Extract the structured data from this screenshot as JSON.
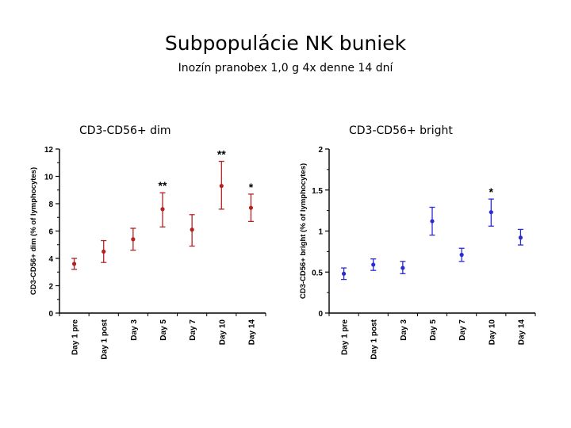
{
  "title": "Subpopulácie NK buniek",
  "subtitle": "Inozín pranobex 1,0 g 4x denne  14 dní",
  "chart_data": [
    {
      "type": "scatter",
      "panel_label": "CD3-CD56+ dim",
      "ylabel": "CD3-CD56+ dim (% of lymphocytes)",
      "categories": [
        "Day 1 pre",
        "Day 1 post",
        "Day 3",
        "Day 5",
        "Day 7",
        "Day 10",
        "Day 14"
      ],
      "values": [
        3.6,
        4.5,
        5.4,
        7.6,
        6.1,
        9.3,
        7.7
      ],
      "err_low": [
        3.2,
        3.7,
        4.6,
        6.3,
        4.9,
        7.6,
        6.7
      ],
      "err_high": [
        4.0,
        5.3,
        6.2,
        8.8,
        7.2,
        11.1,
        8.7
      ],
      "annotations": [
        "",
        "",
        "",
        "**",
        "",
        "**",
        "*"
      ],
      "ylim": [
        0,
        12
      ],
      "yticks": [
        0,
        2,
        4,
        6,
        8,
        10,
        12
      ],
      "ytick_labels": [
        "0",
        "2",
        "4",
        "6",
        "8",
        "10",
        "12"
      ],
      "color": "#b22222"
    },
    {
      "type": "scatter",
      "panel_label": "CD3-CD56+ bright",
      "ylabel": "CD3-CD56+ bright (% of lymphocytes)",
      "categories": [
        "Day 1 pre",
        "Day 1 post",
        "Day 3",
        "Day 5",
        "Day 7",
        "Day 10",
        "Day 14"
      ],
      "values": [
        0.48,
        0.59,
        0.55,
        1.12,
        0.71,
        1.23,
        0.92
      ],
      "err_low": [
        0.41,
        0.52,
        0.48,
        0.95,
        0.63,
        1.06,
        0.83
      ],
      "err_high": [
        0.55,
        0.66,
        0.63,
        1.29,
        0.79,
        1.39,
        1.02
      ],
      "annotations": [
        "",
        "",
        "",
        "",
        "",
        "*",
        ""
      ],
      "ylim": [
        0,
        2
      ],
      "yticks": [
        0,
        0.5,
        1,
        1.5,
        2
      ],
      "ytick_labels": [
        "0",
        "0.5",
        "1",
        "1.5",
        "2"
      ],
      "color": "#2b2bd4"
    }
  ]
}
